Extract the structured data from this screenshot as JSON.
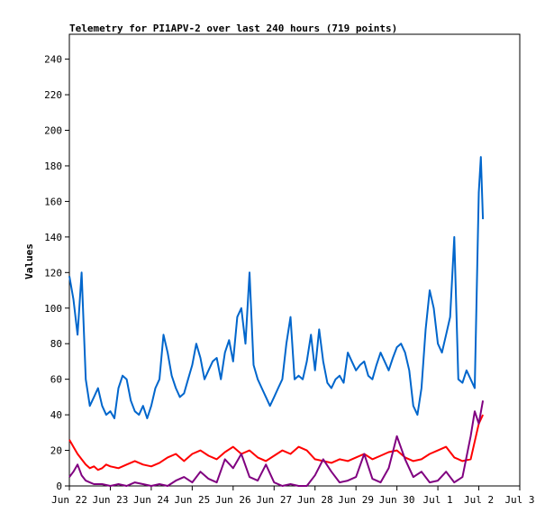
{
  "chart_data": {
    "type": "line",
    "title": "Telemetry for PI1APV-2 over last 240 hours (719 points)",
    "ylabel": "Values",
    "xlabel": "",
    "ylim": [
      0,
      254
    ],
    "xlim": [
      0,
      11
    ],
    "yticks": [
      0,
      20,
      40,
      60,
      80,
      100,
      120,
      140,
      160,
      180,
      200,
      220,
      240
    ],
    "xticks": [
      {
        "value": 0,
        "label": "Jun 22"
      },
      {
        "value": 1,
        "label": "Jun 23"
      },
      {
        "value": 2,
        "label": "Jun 24"
      },
      {
        "value": 3,
        "label": "Jun 25"
      },
      {
        "value": 4,
        "label": "Jun 26"
      },
      {
        "value": 5,
        "label": "Jun 27"
      },
      {
        "value": 6,
        "label": "Jun 28"
      },
      {
        "value": 7,
        "label": "Jun 29"
      },
      {
        "value": 8,
        "label": "Jun 30"
      },
      {
        "value": 9,
        "label": "Jul 1"
      },
      {
        "value": 10,
        "label": "Jul 2"
      },
      {
        "value": 11,
        "label": "Jul 3"
      }
    ],
    "grid": false,
    "legend": "none",
    "series": [
      {
        "color": "#0066cc",
        "x": [
          0,
          0.1,
          0.2,
          0.3,
          0.4,
          0.5,
          0.6,
          0.7,
          0.8,
          0.9,
          1.0,
          1.1,
          1.2,
          1.3,
          1.4,
          1.5,
          1.6,
          1.7,
          1.8,
          1.9,
          2.0,
          2.1,
          2.2,
          2.3,
          2.4,
          2.5,
          2.6,
          2.7,
          2.8,
          2.9,
          3.0,
          3.1,
          3.2,
          3.3,
          3.4,
          3.5,
          3.6,
          3.7,
          3.8,
          3.9,
          4.0,
          4.1,
          4.2,
          4.3,
          4.4,
          4.5,
          4.6,
          4.7,
          4.8,
          4.9,
          5.0,
          5.1,
          5.2,
          5.3,
          5.4,
          5.5,
          5.6,
          5.7,
          5.8,
          5.9,
          6.0,
          6.1,
          6.2,
          6.3,
          6.4,
          6.5,
          6.6,
          6.7,
          6.8,
          6.9,
          7.0,
          7.1,
          7.2,
          7.3,
          7.4,
          7.5,
          7.6,
          7.7,
          7.8,
          7.9,
          8.0,
          8.1,
          8.2,
          8.3,
          8.4,
          8.5,
          8.6,
          8.7,
          8.8,
          8.9,
          9.0,
          9.1,
          9.2,
          9.3,
          9.4,
          9.5,
          9.6,
          9.7,
          9.8,
          9.9,
          10.0,
          10.05,
          10.1
        ],
        "values": [
          118,
          105,
          85,
          120,
          60,
          45,
          50,
          55,
          45,
          40,
          42,
          38,
          55,
          62,
          60,
          48,
          42,
          40,
          45,
          38,
          45,
          55,
          60,
          85,
          75,
          62,
          55,
          50,
          52,
          60,
          68,
          80,
          72,
          60,
          65,
          70,
          72,
          60,
          75,
          82,
          70,
          95,
          100,
          80,
          120,
          68,
          60,
          55,
          50,
          45,
          50,
          55,
          60,
          80,
          95,
          60,
          62,
          60,
          70,
          85,
          65,
          88,
          70,
          58,
          55,
          60,
          62,
          58,
          75,
          70,
          65,
          68,
          70,
          62,
          60,
          68,
          75,
          70,
          65,
          72,
          78,
          80,
          75,
          65,
          45,
          40,
          55,
          88,
          110,
          100,
          80,
          75,
          85,
          95,
          140,
          60,
          58,
          65,
          60,
          55,
          165,
          185,
          150
        ]
      },
      {
        "color": "#ff0000",
        "x": [
          0,
          0.1,
          0.2,
          0.3,
          0.4,
          0.5,
          0.6,
          0.7,
          0.8,
          0.9,
          1.0,
          1.2,
          1.4,
          1.6,
          1.8,
          2.0,
          2.2,
          2.4,
          2.6,
          2.8,
          3.0,
          3.2,
          3.4,
          3.6,
          3.8,
          4.0,
          4.2,
          4.4,
          4.6,
          4.8,
          5.0,
          5.2,
          5.4,
          5.6,
          5.8,
          6.0,
          6.2,
          6.4,
          6.6,
          6.8,
          7.0,
          7.2,
          7.4,
          7.6,
          7.8,
          8.0,
          8.2,
          8.4,
          8.6,
          8.8,
          9.0,
          9.2,
          9.4,
          9.6,
          9.8,
          9.9,
          10.0,
          10.1
        ],
        "values": [
          26,
          22,
          18,
          15,
          12,
          10,
          11,
          9,
          10,
          12,
          11,
          10,
          12,
          14,
          12,
          11,
          13,
          16,
          18,
          14,
          18,
          20,
          17,
          15,
          19,
          22,
          18,
          20,
          16,
          14,
          17,
          20,
          18,
          22,
          20,
          15,
          14,
          13,
          15,
          14,
          16,
          18,
          15,
          17,
          19,
          20,
          16,
          14,
          15,
          18,
          20,
          22,
          16,
          14,
          15,
          25,
          35,
          40
        ]
      },
      {
        "color": "#800080",
        "x": [
          0,
          0.1,
          0.2,
          0.3,
          0.4,
          0.5,
          0.6,
          0.8,
          1.0,
          1.2,
          1.4,
          1.6,
          1.8,
          2.0,
          2.2,
          2.4,
          2.6,
          2.8,
          3.0,
          3.2,
          3.4,
          3.6,
          3.8,
          4.0,
          4.2,
          4.4,
          4.6,
          4.8,
          5.0,
          5.2,
          5.4,
          5.6,
          5.8,
          6.0,
          6.2,
          6.4,
          6.6,
          6.8,
          7.0,
          7.2,
          7.4,
          7.6,
          7.8,
          8.0,
          8.2,
          8.4,
          8.6,
          8.8,
          9.0,
          9.2,
          9.4,
          9.6,
          9.8,
          9.9,
          10.0,
          10.1
        ],
        "values": [
          5,
          8,
          12,
          6,
          3,
          2,
          1,
          1,
          0,
          1,
          0,
          2,
          1,
          0,
          1,
          0,
          3,
          5,
          2,
          8,
          4,
          2,
          15,
          10,
          18,
          5,
          3,
          12,
          2,
          0,
          1,
          0,
          0,
          6,
          15,
          8,
          2,
          3,
          5,
          18,
          4,
          2,
          10,
          28,
          15,
          5,
          8,
          2,
          3,
          8,
          2,
          5,
          28,
          42,
          35,
          48
        ]
      }
    ]
  }
}
